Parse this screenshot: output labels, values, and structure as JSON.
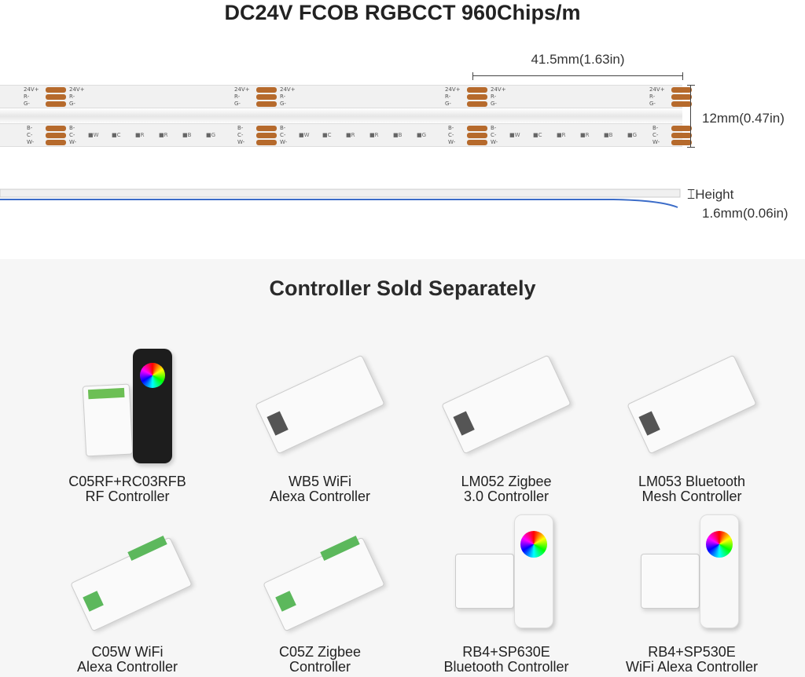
{
  "title": "DC24V FCOB RGBCCT 960Chips/m",
  "dimensions": {
    "length": "41.5mm(1.63in)",
    "width": "12mm(0.47in)",
    "height_label": "Height",
    "height": "1.6mm(0.06in)"
  },
  "strip": {
    "top_labels": [
      "24V+",
      "R-",
      "G-"
    ],
    "bottom_labels": [
      "B-",
      "C-",
      "W-"
    ],
    "chips": [
      "W",
      "C",
      "R",
      "R",
      "B",
      "G"
    ],
    "pad_color": "#b66a2c"
  },
  "subtitle": "Controller Sold Separately",
  "products": [
    {
      "line1": "C05RF+RC03RFB",
      "line2": "RF Controller",
      "kind": "rf"
    },
    {
      "line1": "WB5 WiFi",
      "line2": "Alexa Controller",
      "kind": "box"
    },
    {
      "line1": "LM052 Zigbee",
      "line2": "3.0 Controller",
      "kind": "box"
    },
    {
      "line1": "LM053 Bluetooth",
      "line2": "Mesh Controller",
      "kind": "box"
    },
    {
      "line1": "C05W WiFi",
      "line2": "Alexa Controller",
      "kind": "green"
    },
    {
      "line1": "C05Z Zigbee",
      "line2": "Controller",
      "kind": "green"
    },
    {
      "line1": "RB4+SP630E",
      "line2": "Bluetooth Controller",
      "kind": "remote"
    },
    {
      "line1": "RB4+SP530E",
      "line2": "WiFi Alexa Controller",
      "kind": "remote"
    }
  ]
}
